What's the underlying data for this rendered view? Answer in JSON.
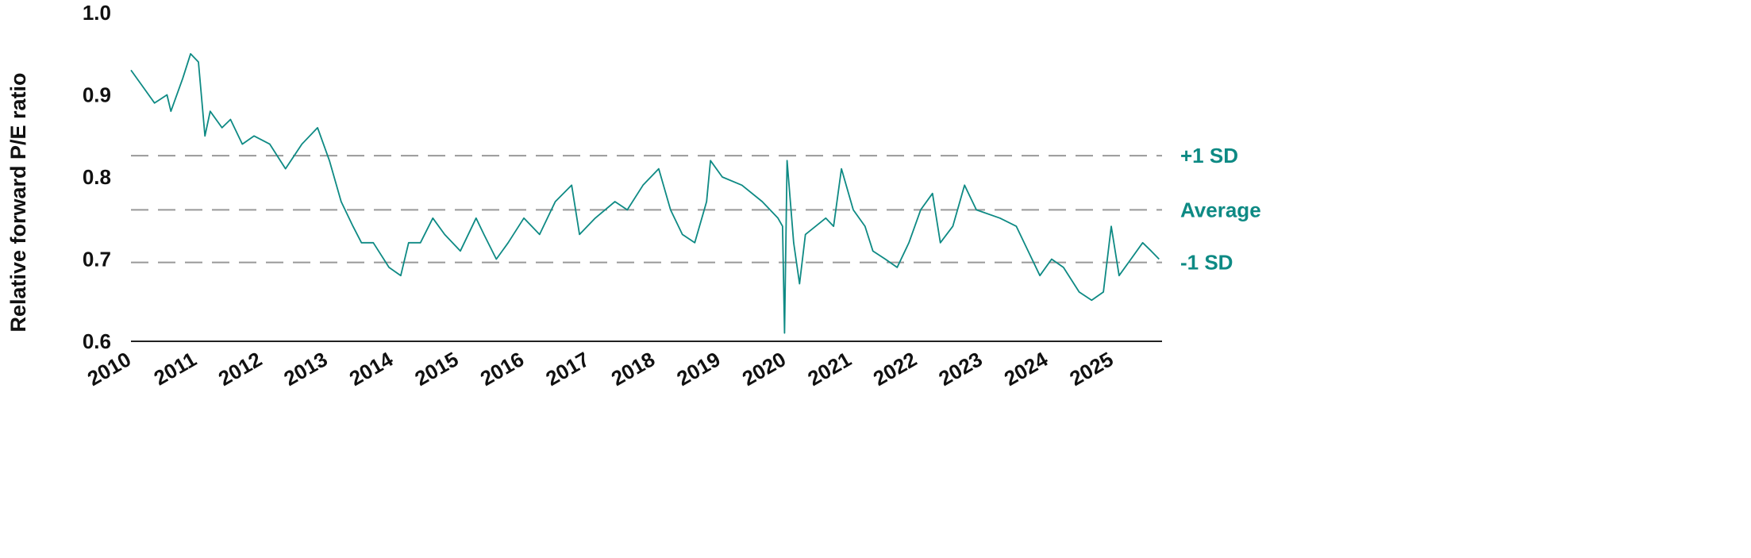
{
  "chart_data": {
    "type": "line",
    "title": "",
    "xlabel": "",
    "ylabel": "Relative forward P/E ratio",
    "ylim": [
      0.6,
      1.0
    ],
    "xlim": [
      2010,
      2025.73
    ],
    "y_ticks": [
      "0.6",
      "0.7",
      "0.8",
      "0.9",
      "1.0"
    ],
    "x_ticks": [
      "2010",
      "2011",
      "2012",
      "2013",
      "2014",
      "2015",
      "2016",
      "2017",
      "2018",
      "2019",
      "2020",
      "2021",
      "2022",
      "2023",
      "2024",
      "2025"
    ],
    "grid": false,
    "line_color": "#0e8a84",
    "reference_color": "#999999",
    "reference_lines": [
      {
        "label": "+1 SD",
        "value": 0.826
      },
      {
        "label": "Average",
        "value": 0.76
      },
      {
        "label": "-1 SD",
        "value": 0.696
      }
    ],
    "x": [
      2010.0,
      2010.18,
      2010.36,
      2010.55,
      2010.61,
      2010.79,
      2010.91,
      2011.03,
      2011.13,
      2011.21,
      2011.39,
      2011.52,
      2011.7,
      2011.88,
      2012.12,
      2012.36,
      2012.61,
      2012.85,
      2013.03,
      2013.21,
      2013.39,
      2013.52,
      2013.7,
      2013.94,
      2014.12,
      2014.24,
      2014.42,
      2014.61,
      2014.79,
      2015.03,
      2015.27,
      2015.39,
      2015.58,
      2015.76,
      2016.0,
      2016.24,
      2016.48,
      2016.73,
      2016.85,
      2017.09,
      2017.39,
      2017.58,
      2017.82,
      2018.06,
      2018.24,
      2018.42,
      2018.61,
      2018.79,
      2018.85,
      2019.03,
      2019.33,
      2019.64,
      2019.88,
      2019.95,
      2019.98,
      2020.02,
      2020.12,
      2020.21,
      2020.3,
      2020.61,
      2020.73,
      2020.85,
      2021.03,
      2021.21,
      2021.33,
      2021.52,
      2021.7,
      2021.88,
      2022.06,
      2022.24,
      2022.36,
      2022.55,
      2022.73,
      2022.91,
      2023.27,
      2023.52,
      2023.76,
      2023.88,
      2024.06,
      2024.24,
      2024.48,
      2024.67,
      2024.85,
      2024.97,
      2025.09,
      2025.27,
      2025.45,
      2025.58,
      2025.7
    ],
    "y": [
      0.93,
      0.91,
      0.89,
      0.9,
      0.88,
      0.92,
      0.95,
      0.94,
      0.85,
      0.88,
      0.86,
      0.87,
      0.84,
      0.85,
      0.84,
      0.81,
      0.84,
      0.86,
      0.82,
      0.77,
      0.74,
      0.72,
      0.72,
      0.69,
      0.68,
      0.72,
      0.72,
      0.75,
      0.73,
      0.71,
      0.75,
      0.73,
      0.7,
      0.72,
      0.75,
      0.73,
      0.77,
      0.79,
      0.73,
      0.75,
      0.77,
      0.76,
      0.79,
      0.81,
      0.76,
      0.73,
      0.72,
      0.77,
      0.82,
      0.8,
      0.79,
      0.77,
      0.75,
      0.74,
      0.61,
      0.82,
      0.72,
      0.67,
      0.73,
      0.75,
      0.74,
      0.81,
      0.76,
      0.74,
      0.71,
      0.7,
      0.69,
      0.72,
      0.76,
      0.78,
      0.72,
      0.74,
      0.79,
      0.76,
      0.75,
      0.74,
      0.7,
      0.68,
      0.7,
      0.69,
      0.66,
      0.65,
      0.66,
      0.74,
      0.68,
      0.7,
      0.72,
      0.71,
      0.7
    ]
  }
}
